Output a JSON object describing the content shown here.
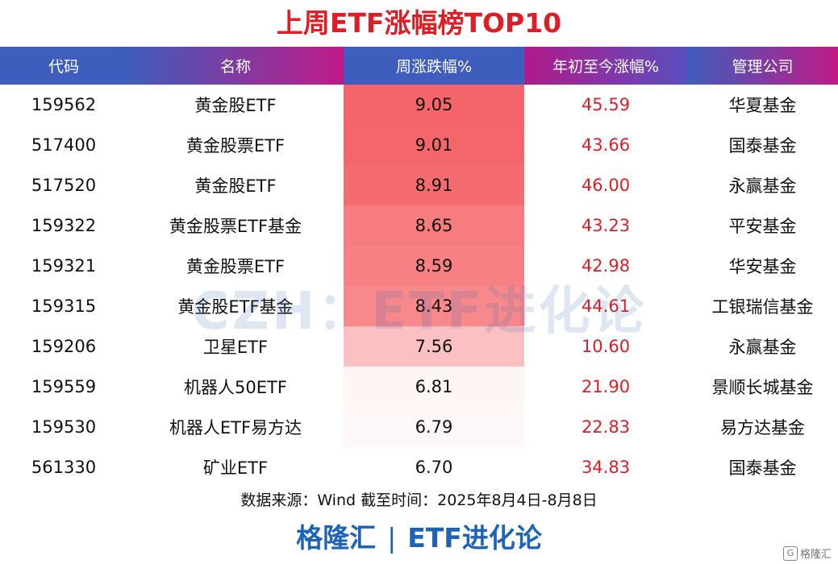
{
  "title": "上周ETF涨幅榜TOP10",
  "colors": {
    "title": "#e01c24",
    "ytd_text": "#e01c24",
    "header_gradient_start": "#3f5dbc",
    "header_gradient_end": "#c01a87",
    "heat_high": "#f46468",
    "heat_low": "#ffffff",
    "brand": "#1d63b8"
  },
  "headers": [
    "代码",
    "名称",
    "周涨跌幅%",
    "年初至今涨幅%",
    "管理公司"
  ],
  "rows": [
    {
      "code": "159562",
      "name": "黄金股ETF",
      "weekly": "9.05",
      "ytd": "45.59",
      "company": "华夏基金"
    },
    {
      "code": "517400",
      "name": "黄金股票ETF",
      "weekly": "9.01",
      "ytd": "43.66",
      "company": "国泰基金"
    },
    {
      "code": "517520",
      "name": "黄金股ETF",
      "weekly": "8.91",
      "ytd": "46.00",
      "company": "永赢基金"
    },
    {
      "code": "159322",
      "name": "黄金股票ETF基金",
      "weekly": "8.65",
      "ytd": "43.23",
      "company": "平安基金"
    },
    {
      "code": "159321",
      "name": "黄金股票ETF",
      "weekly": "8.59",
      "ytd": "42.98",
      "company": "华安基金"
    },
    {
      "code": "159315",
      "name": "黄金股ETF基金",
      "weekly": "8.43",
      "ytd": "44.61",
      "company": "工银瑞信基金"
    },
    {
      "code": "159206",
      "name": "卫星ETF",
      "weekly": "7.56",
      "ytd": "10.60",
      "company": "永赢基金"
    },
    {
      "code": "159559",
      "name": "机器人50ETF",
      "weekly": "6.81",
      "ytd": "21.90",
      "company": "景顺长城基金"
    },
    {
      "code": "159530",
      "name": "机器人ETF易方达",
      "weekly": "6.79",
      "ytd": "22.83",
      "company": "易方达基金"
    },
    {
      "code": "561330",
      "name": "矿业ETF",
      "weekly": "6.70",
      "ytd": "34.83",
      "company": "国泰基金"
    }
  ],
  "watermark": "CZH：ETF进化论",
  "source": "数据来源：Wind 截至时间：2025年8月4日-8月8日",
  "brand": {
    "left": "格隆汇",
    "separator": "|",
    "right": "ETF进化论"
  },
  "corner": {
    "logo": "G",
    "text": "格隆汇"
  },
  "chart_data": {
    "type": "table",
    "title": "上周ETF涨幅榜TOP10",
    "columns": [
      "代码",
      "名称",
      "周涨跌幅%",
      "年初至今涨幅%",
      "管理公司"
    ],
    "weekly_change_pct": [
      9.05,
      9.01,
      8.91,
      8.65,
      8.59,
      8.43,
      7.56,
      6.81,
      6.79,
      6.7
    ],
    "ytd_change_pct": [
      45.59,
      43.66,
      46.0,
      43.23,
      42.98,
      44.61,
      10.6,
      21.9,
      22.83,
      34.83
    ]
  }
}
